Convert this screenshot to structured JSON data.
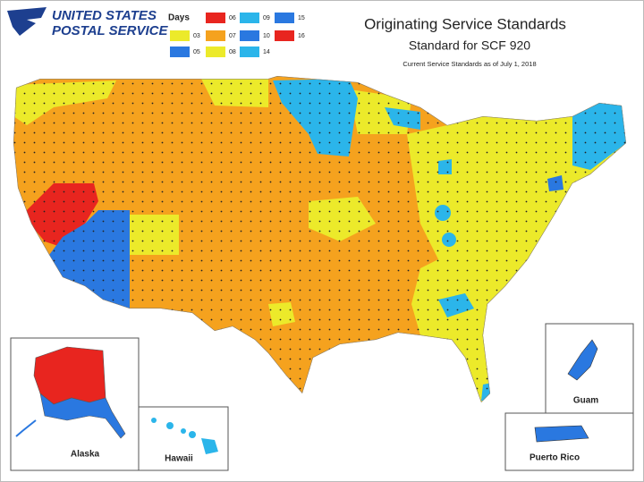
{
  "header": {
    "logo_line1": "UNITED STATES",
    "logo_line2": "POSTAL SERVICE",
    "title": "Originating Service Standards",
    "subtitle": "Standard for SCF 920",
    "note": "Current Service Standards as of July 1, 2018"
  },
  "legend": {
    "title": "Days",
    "columns": [
      [
        {
          "label": "03",
          "color": "#ecea2a"
        },
        {
          "label": "05",
          "color": "#2a78e0"
        }
      ],
      [
        {
          "label": "06",
          "color": "#e8251f"
        },
        {
          "label": "07",
          "color": "#f5a21e"
        },
        {
          "label": "08",
          "color": "#ecea2a"
        }
      ],
      [
        {
          "label": "09",
          "color": "#2bb5ea"
        },
        {
          "label": "10",
          "color": "#2a78e0"
        },
        {
          "label": "14",
          "color": "#2bb5ea"
        }
      ],
      [
        {
          "label": "15",
          "color": "#2a78e0"
        },
        {
          "label": "16",
          "color": "#e8251f"
        }
      ]
    ]
  },
  "insets": {
    "alaska": "Alaska",
    "hawaii": "Hawaii",
    "guam": "Guam",
    "puerto_rico": "Puerto Rico"
  }
}
